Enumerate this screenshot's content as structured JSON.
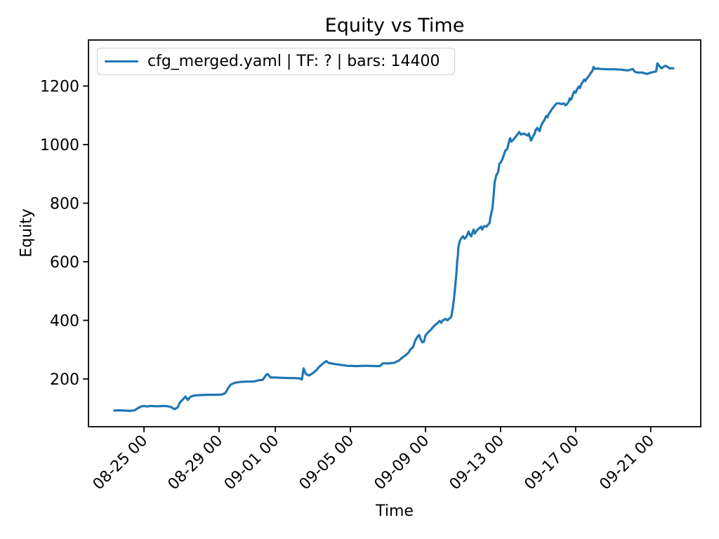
{
  "figure": {
    "background": "#ffffff"
  },
  "chart_data": {
    "type": "line",
    "title": "Equity vs Time",
    "xlabel": "Time",
    "ylabel": "Equity",
    "grid": false,
    "line_color": "#1f77b4",
    "axis_color": "#000000",
    "legend": {
      "position": "upper-left",
      "border_color": "#cccccc",
      "entries": [
        {
          "label": "cfg_merged.yaml | TF: ? | bars: 14400",
          "color": "#1f77b4"
        }
      ]
    },
    "x_axis": {
      "type": "datetime",
      "tick_labels": [
        "08-25 00",
        "08-29 00",
        "09-01 00",
        "09-05 00",
        "09-09 00",
        "09-13 00",
        "09-17 00",
        "09-21 00"
      ],
      "range": [
        "08-22 01:00",
        "09-23 16:00"
      ]
    },
    "y_axis": {
      "ticks": [
        200,
        400,
        600,
        800,
        1000,
        1200
      ],
      "range": [
        37,
        1357
      ]
    },
    "series": [
      {
        "name": "cfg_merged.yaml | TF: ? | bars: 14400",
        "color": "#1f77b4",
        "points": [
          [
            "08-23 10:00",
            92
          ],
          [
            "08-23 16:00",
            93
          ],
          [
            "08-24 00:00",
            92
          ],
          [
            "08-24 06:00",
            91
          ],
          [
            "08-24 12:00",
            93
          ],
          [
            "08-24 16:00",
            100
          ],
          [
            "08-24 20:00",
            106
          ],
          [
            "08-25 00:00",
            108
          ],
          [
            "08-25 04:00",
            106
          ],
          [
            "08-25 09:00",
            108
          ],
          [
            "08-25 14:00",
            107
          ],
          [
            "08-25 20:00",
            107
          ],
          [
            "08-26 03:00",
            108
          ],
          [
            "08-26 10:00",
            105
          ],
          [
            "08-26 15:00",
            97
          ],
          [
            "08-26 19:00",
            103
          ],
          [
            "08-26 22:00",
            120
          ],
          [
            "08-27 02:00",
            131
          ],
          [
            "08-27 05:00",
            140
          ],
          [
            "08-27 08:00",
            128
          ],
          [
            "08-27 11:00",
            138
          ],
          [
            "08-27 14:00",
            142
          ],
          [
            "08-27 18:00",
            144
          ],
          [
            "08-28 02:00",
            145
          ],
          [
            "08-28 10:00",
            146
          ],
          [
            "08-28 20:00",
            146
          ],
          [
            "08-29 04:00",
            147
          ],
          [
            "08-29 08:00",
            152
          ],
          [
            "08-29 12:00",
            170
          ],
          [
            "08-29 15:00",
            181
          ],
          [
            "08-29 20:00",
            187
          ],
          [
            "08-30 04:00",
            190
          ],
          [
            "08-30 12:00",
            191
          ],
          [
            "08-30 20:00",
            191
          ],
          [
            "08-31 02:00",
            195
          ],
          [
            "08-31 08:00",
            197
          ],
          [
            "08-31 12:00",
            213
          ],
          [
            "08-31 14:00",
            217
          ],
          [
            "08-31 18:00",
            205
          ],
          [
            "09-01 00:00",
            205
          ],
          [
            "09-01 08:00",
            204
          ],
          [
            "09-01 16:00",
            203
          ],
          [
            "09-02 00:00",
            203
          ],
          [
            "09-02 07:00",
            202
          ],
          [
            "09-02 10:00",
            198
          ],
          [
            "09-02 12:00",
            236
          ],
          [
            "09-02 15:00",
            217
          ],
          [
            "09-02 19:00",
            212
          ],
          [
            "09-03 00:00",
            220
          ],
          [
            "09-03 04:00",
            229
          ],
          [
            "09-03 08:00",
            241
          ],
          [
            "09-03 13:00",
            253
          ],
          [
            "09-03 17:00",
            261
          ],
          [
            "09-03 20:00",
            255
          ],
          [
            "09-04 04:00",
            251
          ],
          [
            "09-04 12:00",
            248
          ],
          [
            "09-04 20:00",
            245
          ],
          [
            "09-05 08:00",
            244
          ],
          [
            "09-05 20:00",
            245
          ],
          [
            "09-06 08:00",
            244
          ],
          [
            "09-06 14:00",
            244
          ],
          [
            "09-06 17:00",
            253
          ],
          [
            "09-07 00:00",
            253
          ],
          [
            "09-07 08:00",
            255
          ],
          [
            "09-07 14:00",
            263
          ],
          [
            "09-07 18:00",
            272
          ],
          [
            "09-07 22:00",
            280
          ],
          [
            "09-08 02:00",
            289
          ],
          [
            "09-08 05:00",
            302
          ],
          [
            "09-08 08:00",
            308
          ],
          [
            "09-08 11:00",
            332
          ],
          [
            "09-08 14:00",
            345
          ],
          [
            "09-08 16:00",
            350
          ],
          [
            "09-08 17:30",
            337
          ],
          [
            "09-08 20:00",
            325
          ],
          [
            "09-08 22:00",
            327
          ],
          [
            "09-09 00:00",
            349
          ],
          [
            "09-09 04:00",
            361
          ],
          [
            "09-09 07:00",
            368
          ],
          [
            "09-09 09:00",
            375
          ],
          [
            "09-09 13:00",
            386
          ],
          [
            "09-09 16:00",
            392
          ],
          [
            "09-09 18:00",
            398
          ],
          [
            "09-09 20:00",
            392
          ],
          [
            "09-09 22:00",
            400
          ],
          [
            "09-10 02:00",
            405
          ],
          [
            "09-10 04:00",
            400
          ],
          [
            "09-10 06:00",
            405
          ],
          [
            "09-10 09:00",
            412
          ],
          [
            "09-10 11:00",
            445
          ],
          [
            "09-10 12:30",
            475
          ],
          [
            "09-10 14:00",
            516
          ],
          [
            "09-10 15:30",
            560
          ],
          [
            "09-10 16:30",
            600
          ],
          [
            "09-10 17:30",
            624
          ],
          [
            "09-10 18:00",
            650
          ],
          [
            "09-10 20:00",
            672
          ],
          [
            "09-10 21:30",
            679
          ],
          [
            "09-11 00:00",
            687
          ],
          [
            "09-11 02:00",
            679
          ],
          [
            "09-11 04:00",
            684
          ],
          [
            "09-11 06:00",
            696
          ],
          [
            "09-11 07:00",
            703
          ],
          [
            "09-11 09:00",
            691
          ],
          [
            "09-11 10:30",
            687
          ],
          [
            "09-11 12:00",
            699
          ],
          [
            "09-11 13:30",
            710
          ],
          [
            "09-11 15:00",
            696
          ],
          [
            "09-11 16:30",
            703
          ],
          [
            "09-11 18:00",
            708
          ],
          [
            "09-11 21:00",
            715
          ],
          [
            "09-11 23:00",
            720
          ],
          [
            "09-12 00:30",
            710
          ],
          [
            "09-12 03:00",
            722
          ],
          [
            "09-12 06:00",
            720
          ],
          [
            "09-12 08:00",
            727
          ],
          [
            "09-12 10:00",
            732
          ],
          [
            "09-12 11:00",
            751
          ],
          [
            "09-12 12:00",
            763
          ],
          [
            "09-12 13:30",
            780
          ],
          [
            "09-12 15:00",
            823
          ],
          [
            "09-12 16:30",
            871
          ],
          [
            "09-12 18:30",
            895
          ],
          [
            "09-12 21:00",
            907
          ],
          [
            "09-12 22:30",
            935
          ],
          [
            "09-13 00:00",
            938
          ],
          [
            "09-13 02:00",
            948
          ],
          [
            "09-13 03:30",
            959
          ],
          [
            "09-13 06:00",
            979
          ],
          [
            "09-13 08:45",
            986
          ],
          [
            "09-13 10:30",
            1007
          ],
          [
            "09-13 12:15",
            1022
          ],
          [
            "09-13 14:00",
            1010
          ],
          [
            "09-13 17:00",
            1019
          ],
          [
            "09-13 19:00",
            1026
          ],
          [
            "09-13 21:30",
            1034
          ],
          [
            "09-14 00:00",
            1043
          ],
          [
            "09-14 02:00",
            1034
          ],
          [
            "09-14 06:00",
            1038
          ],
          [
            "09-14 08:00",
            1034
          ],
          [
            "09-14 10:45",
            1031
          ],
          [
            "09-14 12:00",
            1038
          ],
          [
            "09-14 13:30",
            1026
          ],
          [
            "09-14 15:00",
            1014
          ],
          [
            "09-14 16:30",
            1022
          ],
          [
            "09-14 18:00",
            1031
          ],
          [
            "09-14 19:45",
            1038
          ],
          [
            "09-14 21:00",
            1050
          ],
          [
            "09-14 23:00",
            1057
          ],
          [
            "09-15 00:30",
            1050
          ],
          [
            "09-15 02:00",
            1046
          ],
          [
            "09-15 03:30",
            1062
          ],
          [
            "09-15 05:30",
            1074
          ],
          [
            "09-15 07:30",
            1081
          ],
          [
            "09-15 09:00",
            1090
          ],
          [
            "09-15 10:30",
            1098
          ],
          [
            "09-15 12:00",
            1093
          ],
          [
            "09-15 13:45",
            1105
          ],
          [
            "09-15 16:00",
            1114
          ],
          [
            "09-15 18:00",
            1122
          ],
          [
            "09-15 20:00",
            1129
          ],
          [
            "09-15 22:00",
            1136
          ],
          [
            "09-16 00:00",
            1141
          ],
          [
            "09-16 03:00",
            1141
          ],
          [
            "09-16 06:00",
            1138
          ],
          [
            "09-16 09:00",
            1141
          ],
          [
            "09-16 11:00",
            1134
          ],
          [
            "09-16 13:00",
            1138
          ],
          [
            "09-16 15:00",
            1146
          ],
          [
            "09-16 16:30",
            1158
          ],
          [
            "09-16 18:00",
            1153
          ],
          [
            "09-16 19:30",
            1162
          ],
          [
            "09-16 21:00",
            1175
          ],
          [
            "09-16 22:30",
            1182
          ],
          [
            "09-17 00:00",
            1177
          ],
          [
            "09-17 02:00",
            1189
          ],
          [
            "09-17 04:00",
            1198
          ],
          [
            "09-17 05:30",
            1193
          ],
          [
            "09-17 07:00",
            1205
          ],
          [
            "09-17 09:00",
            1213
          ],
          [
            "09-17 11:00",
            1222
          ],
          [
            "09-17 12:30",
            1217
          ],
          [
            "09-17 14:00",
            1225
          ],
          [
            "09-17 15:30",
            1229
          ],
          [
            "09-17 17:00",
            1234
          ],
          [
            "09-17 18:30",
            1241
          ],
          [
            "09-17 20:00",
            1246
          ],
          [
            "09-17 21:30",
            1253
          ],
          [
            "09-17 23:00",
            1265
          ],
          [
            "09-18 01:00",
            1258
          ],
          [
            "09-18 04:00",
            1260
          ],
          [
            "09-18 08:00",
            1258
          ],
          [
            "09-18 16:00",
            1257
          ],
          [
            "09-19 00:00",
            1257
          ],
          [
            "09-19 10:00",
            1256
          ],
          [
            "09-19 19:00",
            1253
          ],
          [
            "09-20 01:00",
            1258
          ],
          [
            "09-20 04:00",
            1248
          ],
          [
            "09-20 07:00",
            1246
          ],
          [
            "09-20 13:00",
            1246
          ],
          [
            "09-20 19:00",
            1241
          ],
          [
            "09-21 00:30",
            1246
          ],
          [
            "09-21 04:00",
            1248
          ],
          [
            "09-21 07:00",
            1250
          ],
          [
            "09-21 08:30",
            1277
          ],
          [
            "09-21 10:00",
            1272
          ],
          [
            "09-21 12:00",
            1265
          ],
          [
            "09-21 14:00",
            1260
          ],
          [
            "09-21 16:00",
            1265
          ],
          [
            "09-21 19:00",
            1269
          ],
          [
            "09-21 22:00",
            1265
          ],
          [
            "09-22 00:00",
            1260
          ],
          [
            "09-22 03:00",
            1261
          ],
          [
            "09-22 05:00",
            1260
          ]
        ]
      }
    ]
  }
}
